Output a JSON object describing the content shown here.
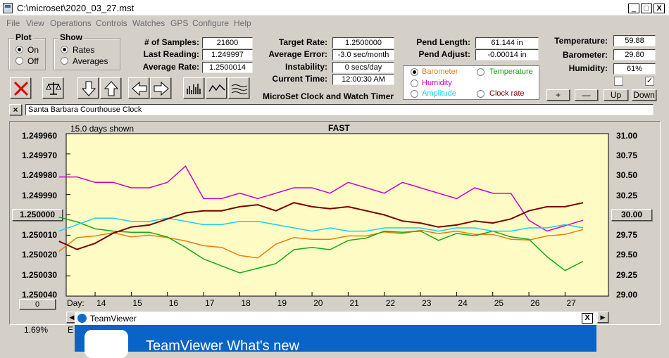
{
  "window": {
    "title": "C:\\microset\\2020_03_27.mst",
    "min": "_",
    "max": "□",
    "close": "X"
  },
  "menu": [
    "File",
    "View",
    "Operations",
    "Controls",
    "Watches",
    "GPS",
    "Configure",
    "Help"
  ],
  "plot_group": {
    "title": "Plot",
    "on": "On",
    "off": "Off"
  },
  "show_group": {
    "title": "Show",
    "rates": "Rates",
    "averages": "Averages"
  },
  "stats": {
    "samples_label": "# of Samples:",
    "samples": "21600",
    "last_label": "Last Reading:",
    "last": "1.249997",
    "avg_rate_label": "Average Rate:",
    "avg_rate": "1.2500014",
    "target_label": "Target Rate:",
    "target": "1.2500000",
    "avg_err_label": "Average Error:",
    "avg_err": "-3.0 sec/month",
    "instab_label": "Instability:",
    "instab": "0 secs/day",
    "time_label": "Current Time:",
    "time": "12:00:30 AM",
    "pend_len_label": "Pend Length:",
    "pend_len": "61.144 in",
    "pend_adj_label": "Pend Adjust:",
    "pend_adj": "-0.00014 in",
    "temp_label": "Temperature:",
    "temp": "59.88",
    "baro_label": "Barometer:",
    "baro": "29.80",
    "hum_label": "Humidity:",
    "hum": "61%"
  },
  "app_caption": "MicroSet Clock and Watch Timer",
  "options": {
    "barometer": "Barometer",
    "temperature": "Temperature",
    "humidity": "Humidity",
    "amplitude": "Amplitude",
    "clock_rate": "Clock rate"
  },
  "colors": {
    "barometer": "#e87d0e",
    "temperature": "#16a916",
    "humidity": "#cc00cc",
    "amplitude": "#19d0f0",
    "clock_rate": "#7a0000",
    "plot_bg": "#fefcc4"
  },
  "small_buttons": {
    "plus": "+",
    "minus": "—",
    "up": "Up",
    "down": "Down"
  },
  "clock_name": "Santa Barbara Courthouse Clock",
  "clear_x": "×",
  "plot": {
    "days_shown": "15.0 days shown",
    "status": "FAST",
    "day_label": "Day:",
    "left_ticks": [
      "1.249960",
      "1.249970",
      "1.249980",
      "1.249990",
      "",
      "1.250010",
      "1.250020",
      "1.250030",
      "1.250040"
    ],
    "center_value": "1.250000",
    "right_ticks": [
      "31.00",
      "30.75",
      "30.50",
      "30.25",
      "",
      "29.75",
      "29.50",
      "29.25",
      "29.00"
    ],
    "right_center": "30.00",
    "days": [
      "14",
      "15",
      "16",
      "17",
      "18",
      "19",
      "20",
      "21",
      "22",
      "23",
      "24",
      "25",
      "26",
      "27"
    ],
    "offset_btn": "0",
    "percent": "1.69%",
    "partial_letter": "E"
  },
  "teamviewer": {
    "title": "TeamViewer",
    "headline": "TeamViewer What's new",
    "close": "X"
  },
  "chart_data": {
    "type": "line",
    "x": [
      13.0,
      13.5,
      14.0,
      14.5,
      15.0,
      15.5,
      16.0,
      16.5,
      17.0,
      17.5,
      18.0,
      18.5,
      19.0,
      19.5,
      20.0,
      20.5,
      21.0,
      21.5,
      22.0,
      22.5,
      23.0,
      23.5,
      24.0,
      24.5,
      25.0,
      25.5,
      26.0,
      26.5,
      27.0,
      27.5
    ],
    "series": [
      {
        "name": "Barometer",
        "values": [
          29.55,
          29.72,
          29.74,
          29.78,
          29.73,
          29.75,
          29.72,
          29.68,
          29.62,
          29.6,
          29.5,
          29.47,
          29.64,
          29.72,
          29.7,
          29.7,
          29.74,
          29.74,
          29.79,
          29.77,
          29.81,
          29.77,
          29.8,
          29.76,
          29.76,
          29.7,
          29.69,
          29.74,
          29.76,
          29.82
        ]
      },
      {
        "name": "Temperature",
        "values": [
          60.8,
          60.4,
          59.8,
          59.6,
          59.5,
          59.5,
          59.1,
          58.2,
          57.2,
          56.6,
          56.0,
          56.4,
          56.8,
          58.0,
          58.2,
          58.0,
          58.8,
          59.0,
          59.6,
          59.5,
          59.6,
          58.8,
          59.4,
          59.2,
          59.6,
          59.1,
          58.9,
          57.4,
          56.2,
          57.0
        ]
      },
      {
        "name": "Humidity",
        "values": [
          66,
          66,
          65.5,
          65.5,
          65,
          65,
          65.5,
          67,
          64,
          64,
          64.5,
          64,
          64.5,
          65,
          65,
          64.5,
          65.5,
          65,
          64.5,
          65.5,
          65,
          64.5,
          64,
          65,
          64.5,
          64.5,
          62,
          61,
          61.5,
          62
        ]
      },
      {
        "name": "Amplitude",
        "values": [
          3.0,
          3.1,
          3.2,
          3.2,
          3.15,
          3.15,
          3.2,
          3.15,
          3.1,
          3.1,
          3.15,
          3.15,
          3.1,
          3.05,
          3.0,
          3.05,
          3.0,
          3.0,
          3.05,
          3.05,
          3.05,
          3.0,
          3.05,
          3.05,
          3.0,
          3.0,
          3.05,
          3.05,
          3.1,
          3.05
        ]
      },
      {
        "name": "Clock rate",
        "values": [
          1.2500013,
          1.2500017,
          1.2500014,
          1.2500009,
          1.2500006,
          1.2500005,
          1.2500002,
          1.2499999,
          1.2499998,
          1.2499998,
          1.2499996,
          1.2499995,
          1.2499998,
          1.2499994,
          1.2499996,
          1.2499997,
          1.2499996,
          1.2499998,
          1.25,
          1.2500003,
          1.2500004,
          1.2500006,
          1.2500005,
          1.2500003,
          1.2500004,
          1.2500002,
          1.2499998,
          1.2499996,
          1.2499996,
          1.2499994
        ]
      }
    ]
  }
}
